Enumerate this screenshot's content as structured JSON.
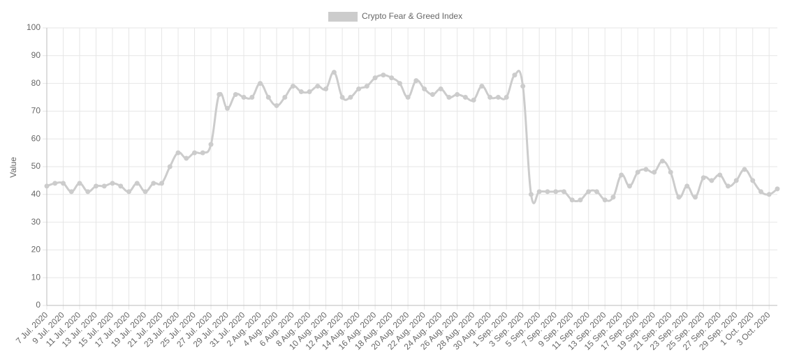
{
  "chart_data": {
    "type": "line",
    "y_label": "Value",
    "categories": [
      "7 Jul. 2020",
      null,
      "9 Jul. 2020",
      null,
      "11 Jul. 2020",
      null,
      "13 Jul. 2020",
      null,
      "15 Jul. 2020",
      null,
      "17 Jul. 2020",
      null,
      "19 Jul. 2020",
      null,
      "21 Jul. 2020",
      null,
      "23 Jul. 2020",
      null,
      "25 Jul. 2020",
      null,
      "27 Jul. 2020",
      null,
      "29 Jul. 2020",
      null,
      "31 Jul. 2020",
      null,
      "2 Aug. 2020",
      null,
      "4 Aug. 2020",
      null,
      "6 Aug. 2020",
      null,
      "8 Aug. 2020",
      null,
      "10 Aug. 2020",
      null,
      "12 Aug. 2020",
      null,
      "14 Aug. 2020",
      null,
      "16 Aug. 2020",
      null,
      "18 Aug. 2020",
      null,
      "20 Aug. 2020",
      null,
      "22 Aug. 2020",
      null,
      "24 Aug. 2020",
      null,
      "26 Aug. 2020",
      null,
      "28 Aug. 2020",
      null,
      "30 Aug. 2020",
      null,
      "1 Sep. 2020",
      null,
      "3 Sep. 2020",
      null,
      "5 Sep. 2020",
      null,
      "7 Sep. 2020",
      null,
      "9 Sep. 2020",
      null,
      "11 Sep. 2020",
      null,
      "13 Sep. 2020",
      null,
      "15 Sep. 2020",
      null,
      "17 Sep. 2020",
      null,
      "19 Sep. 2020",
      null,
      "21 Sep. 2020",
      null,
      "23 Sep. 2020",
      null,
      "25 Sep. 2020",
      null,
      "27 Sep. 2020",
      null,
      "29 Sep. 2020",
      null,
      "1 Oct. 2020",
      null,
      "3 Oct. 2020",
      null
    ],
    "series": [
      {
        "name": "Crypto Fear & Greed Index",
        "color": "#cccccc",
        "values": [
          43,
          44,
          44,
          41,
          44,
          41,
          43,
          43,
          44,
          43,
          41,
          44,
          41,
          44,
          44,
          50,
          55,
          53,
          55,
          55,
          58,
          76,
          71,
          76,
          75,
          75,
          80,
          75,
          72,
          75,
          79,
          77,
          77,
          79,
          78,
          84,
          75,
          75,
          78,
          79,
          82,
          83,
          82,
          80,
          75,
          81,
          78,
          76,
          78,
          75,
          76,
          75,
          74,
          79,
          75,
          75,
          75,
          83,
          79,
          40,
          41,
          41,
          41,
          41,
          38,
          38,
          41,
          41,
          38,
          39,
          47,
          43,
          48,
          49,
          48,
          52,
          48,
          39,
          43,
          39,
          46,
          45,
          47,
          43,
          45,
          49,
          45,
          41,
          40,
          42
        ]
      }
    ],
    "ylim": [
      0,
      100
    ],
    "yticks": [
      0,
      10,
      20,
      30,
      40,
      50,
      60,
      70,
      80,
      90,
      100
    ],
    "grid": true,
    "legend": "top"
  }
}
